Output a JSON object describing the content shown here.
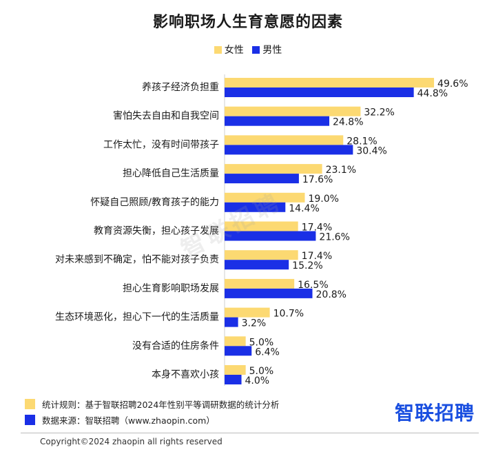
{
  "title": "影响职场人生育意愿的因素",
  "colors": {
    "female": "#fcd972",
    "male": "#1a2fe6",
    "brand": "#1a4fe0"
  },
  "legend": {
    "female": "女性",
    "male": "男性"
  },
  "chart_data": {
    "type": "bar",
    "orientation": "horizontal",
    "title": "影响职场人生育意愿的因素",
    "unit": "%",
    "legend_position": "top-center",
    "categories": [
      "养孩子经济负担重",
      "害怕失去自由和自我空间",
      "工作太忙，没有时间带孩子",
      "担心降低自己生活质量",
      "怀疑自己照顾/教育孩子的能力",
      "教育资源失衡，担心孩子发展",
      "对未来感到不确定，怕不能对孩子负责",
      "担心生育影响职场发展",
      "生态环境恶化，担心下一代的生活质量",
      "没有合适的住房条件",
      "本身不喜欢小孩"
    ],
    "series": [
      {
        "name": "女性",
        "values": [
          49.6,
          32.2,
          28.1,
          23.1,
          19.0,
          17.4,
          17.4,
          16.5,
          10.7,
          5.0,
          5.0
        ],
        "labels": [
          "49.6%",
          "32.2%",
          "28.1%",
          "23.1%",
          "19.0%",
          "17.4%",
          "17.4%",
          "16.5%",
          "10.7%",
          "5.0%",
          "5.0%"
        ]
      },
      {
        "name": "男性",
        "values": [
          44.8,
          24.8,
          30.4,
          17.6,
          14.4,
          21.6,
          15.2,
          20.8,
          3.2,
          6.4,
          4.0
        ],
        "labels": [
          "44.8%",
          "24.8%",
          "30.4%",
          "17.6%",
          "14.4%",
          "21.6%",
          "15.2%",
          "20.8%",
          "3.2%",
          "6.4%",
          "4.0%"
        ]
      }
    ]
  },
  "watermark": "智联招聘",
  "notes": {
    "rule": "统计规则：基于智联招聘2024年性别平等调研数据的统计分析",
    "source": "数据来源：智联招聘（www.zhaopin.com）"
  },
  "brand": "智联招聘",
  "copyright": "Copyright©2024 zhaopin all rights reserved"
}
